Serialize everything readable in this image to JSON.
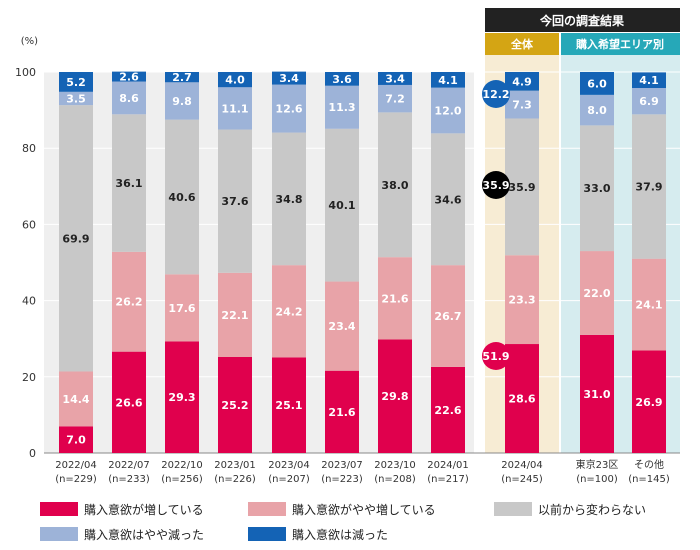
{
  "chart_data": {
    "type": "bar",
    "stacked": true,
    "y_unit": "(%)",
    "ylim": [
      0,
      100
    ],
    "yticks": [
      0,
      20,
      40,
      60,
      80,
      100
    ],
    "categories": [
      {
        "label": "2022/04",
        "n": "(n=229)"
      },
      {
        "label": "2022/07",
        "n": "(n=233)"
      },
      {
        "label": "2022/10",
        "n": "(n=256)"
      },
      {
        "label": "2023/01",
        "n": "(n=226)"
      },
      {
        "label": "2023/04",
        "n": "(n=207)"
      },
      {
        "label": "2023/07",
        "n": "(n=223)"
      },
      {
        "label": "2023/10",
        "n": "(n=208)"
      },
      {
        "label": "2024/01",
        "n": "(n=217)"
      },
      {
        "label": "2024/04",
        "n": "(n=245)"
      },
      {
        "label": "東京23区",
        "n": "(n=100)"
      },
      {
        "label": "その他",
        "n": "(n=145)"
      }
    ],
    "series": [
      {
        "name": "購入意欲が増している",
        "color": "#e0004d",
        "label_color": "#ffffff",
        "values": [
          7.0,
          26.6,
          29.3,
          25.2,
          25.1,
          21.6,
          29.8,
          22.6,
          28.6,
          31.0,
          26.9
        ]
      },
      {
        "name": "購入意欲がやや増している",
        "color": "#e8a3a8",
        "label_color": "#ffffff",
        "values": [
          14.4,
          26.2,
          17.6,
          22.1,
          24.2,
          23.4,
          21.6,
          26.7,
          23.3,
          22.0,
          24.1
        ]
      },
      {
        "name": "以前から変わらない",
        "color": "#c8c8c8",
        "label_color": "#222222",
        "values": [
          69.9,
          36.1,
          40.6,
          37.6,
          34.8,
          40.1,
          38.0,
          34.6,
          35.9,
          33.0,
          37.9
        ]
      },
      {
        "name": "購入意欲はやや減った",
        "color": "#9db3d8",
        "label_color": "#ffffff",
        "values": [
          3.5,
          8.6,
          9.8,
          11.1,
          12.6,
          11.3,
          7.2,
          12.0,
          7.3,
          8.0,
          6.9
        ]
      },
      {
        "name": "購入意欲は減った",
        "color": "#1463b5",
        "label_color": "#ffffff",
        "values": [
          5.2,
          2.6,
          2.7,
          4.0,
          3.4,
          3.6,
          3.4,
          4.1,
          4.9,
          6.0,
          4.1
        ]
      }
    ],
    "annotations": {
      "header_title": "今回の調査結果",
      "group_overall": "全体",
      "group_area": "購入希望エリア別",
      "summary_increase": "51.9",
      "summary_same": "35.9",
      "summary_decrease": "12.2"
    },
    "colors": {
      "header_bg": "#222222",
      "overall_bg": "#f7ecd4",
      "overall_header": "#d4a514",
      "area_bg": "#d6ecef",
      "area_header": "#26a8b8",
      "plot_bg": "#efefef",
      "summary_same_bg": "#000000"
    },
    "legend_position": "bottom"
  }
}
